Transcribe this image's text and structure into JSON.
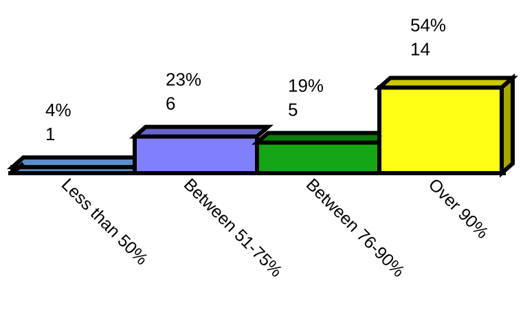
{
  "chart_data": {
    "type": "bar",
    "style": "3d",
    "categories": [
      "Less than 50%",
      "Between 51-75%",
      "Between 76-90%",
      "Over 90%"
    ],
    "percents": [
      "4%",
      "23%",
      "19%",
      "54%"
    ],
    "values": [
      1,
      6,
      5,
      14
    ],
    "colors": [
      {
        "front": "#5b8fc9",
        "top": "#5b8fc9",
        "side": "#3b6b9e"
      },
      {
        "front": "#8080ff",
        "top": "#6666cc",
        "side": "#4d4d99"
      },
      {
        "front": "#14a614",
        "top": "#0a7a0a",
        "side": "#086008"
      },
      {
        "front": "#ffff14",
        "top": "#c9c900",
        "side": "#a6a600"
      }
    ],
    "grid": false,
    "legend": "none"
  }
}
